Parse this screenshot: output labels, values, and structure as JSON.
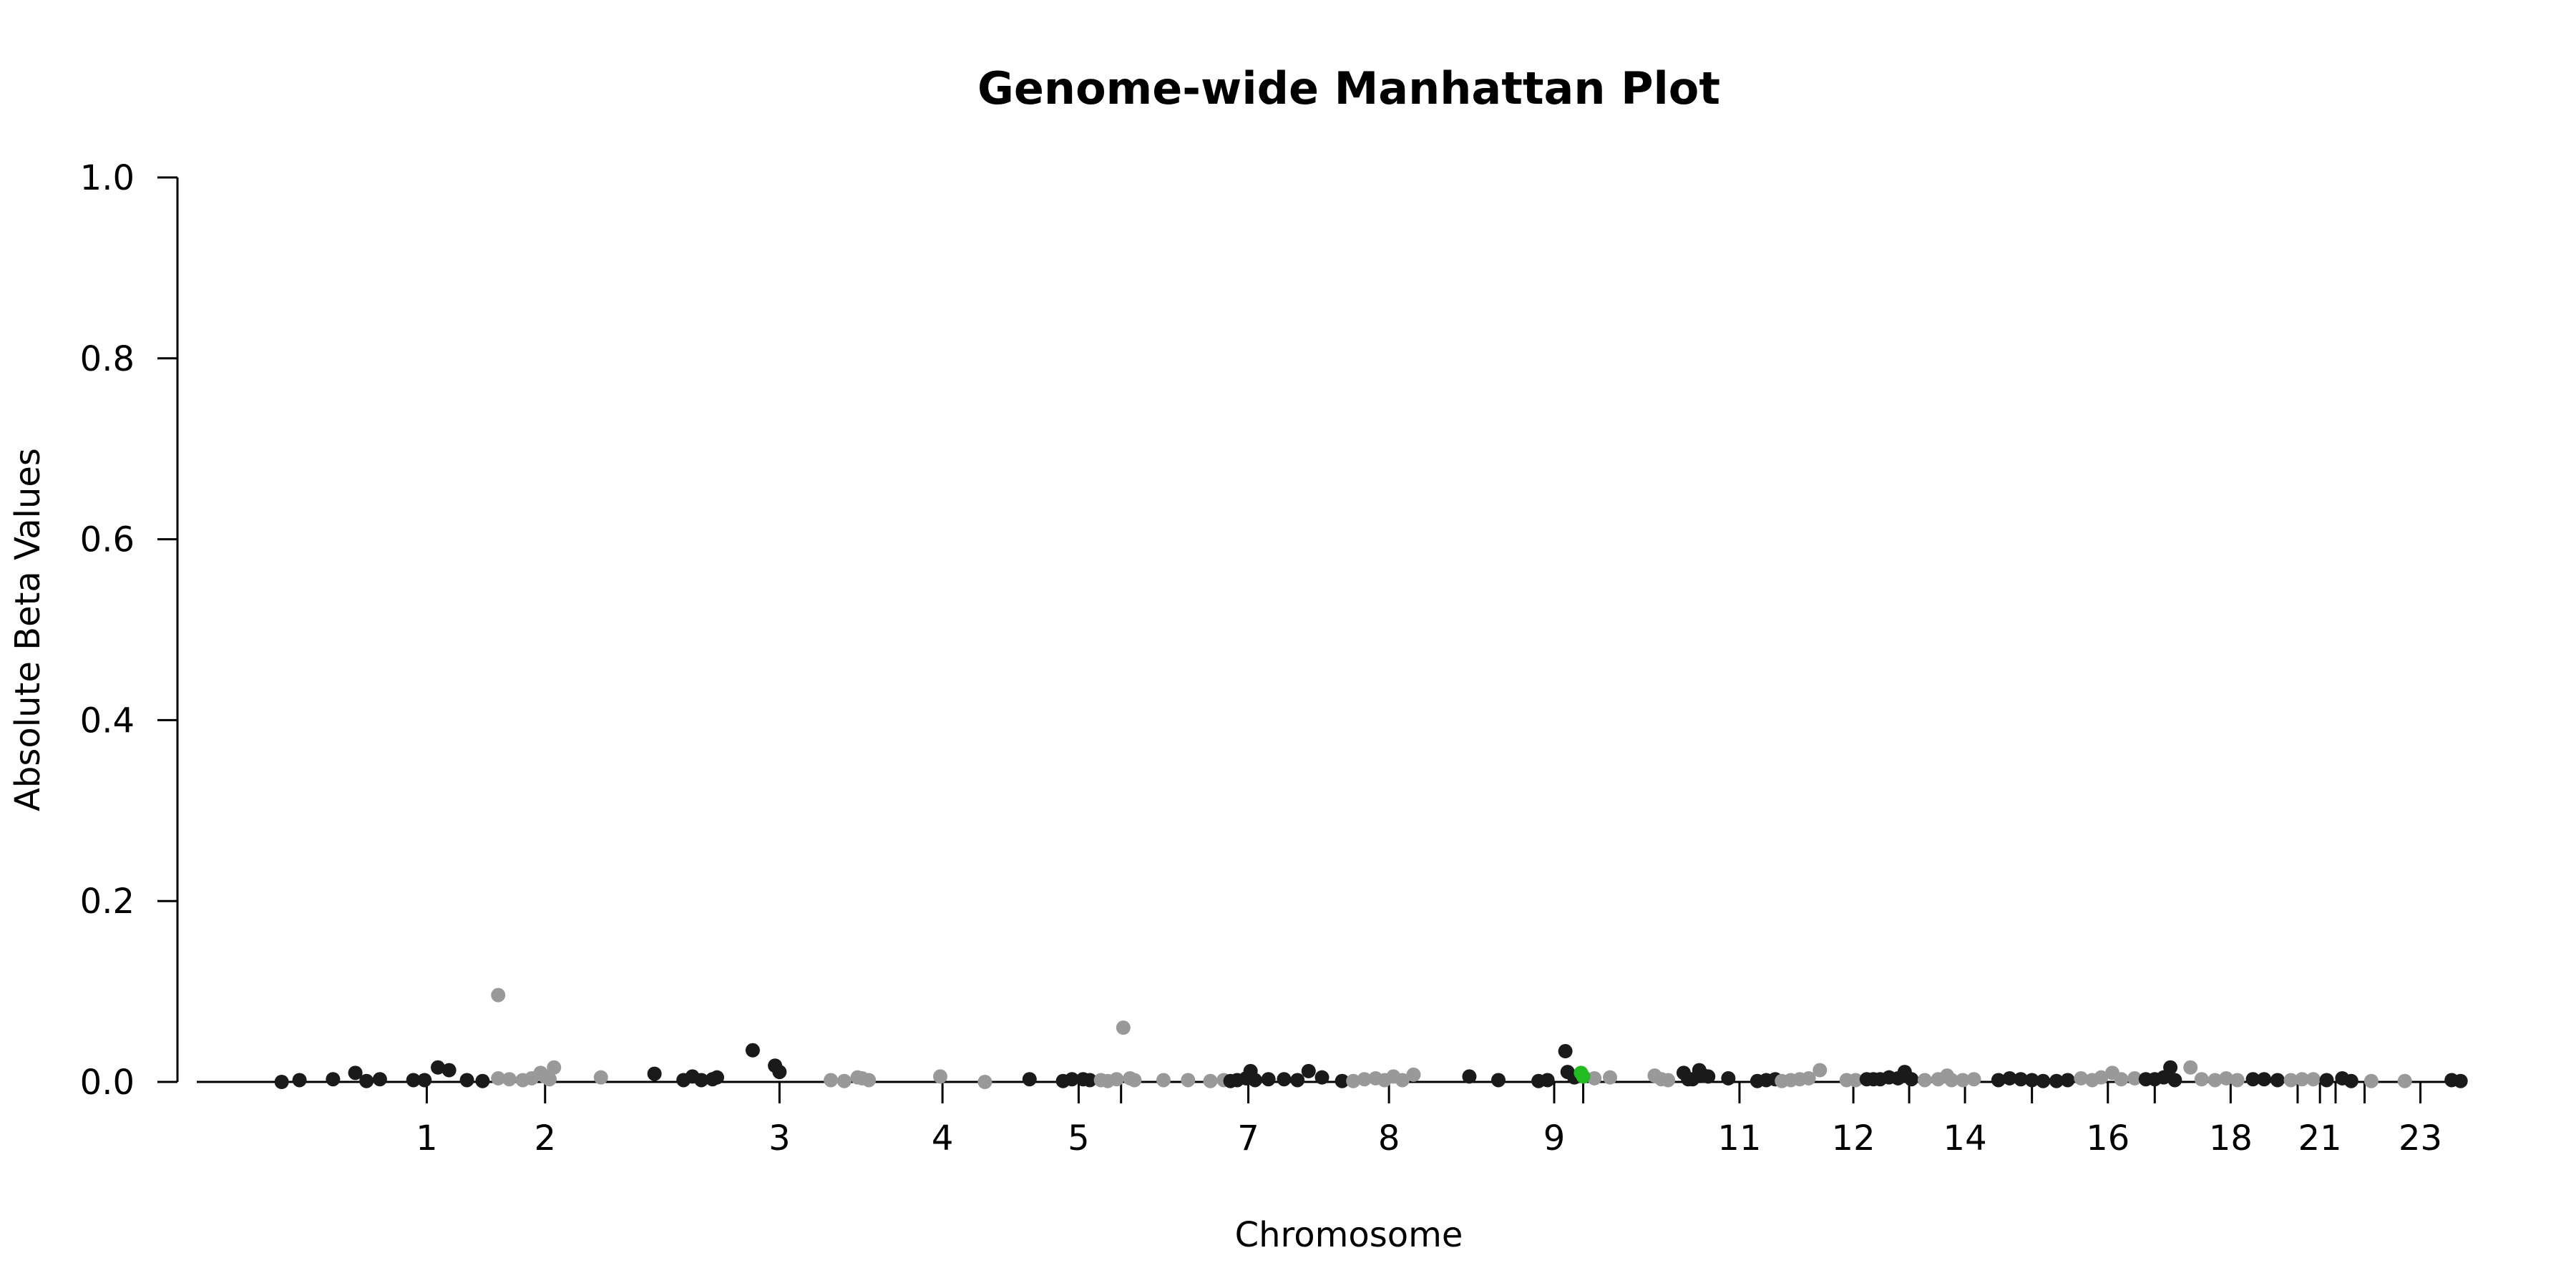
{
  "chart_data": {
    "type": "scatter",
    "title": "Genome-wide Manhattan Plot",
    "xlabel": "Chromosome",
    "ylabel": "Absolute Beta Values",
    "ylim": [
      0,
      1
    ],
    "yticks": [
      "0.0",
      "0.2",
      "0.4",
      "0.6",
      "0.8",
      "1.0"
    ],
    "grid": false,
    "legend": "none",
    "colors": {
      "odd": "#1a1a1a",
      "even": "#999999",
      "highlight": "#22bb22"
    },
    "chromosome_ticks": [
      {
        "label": "1",
        "pos": 0.095
      },
      {
        "label": "2",
        "pos": 0.148
      },
      {
        "label": "3",
        "pos": 0.253
      },
      {
        "label": "4",
        "pos": 0.326
      },
      {
        "label": "5",
        "pos": 0.387
      },
      {
        "label": "",
        "pos": 0.406
      },
      {
        "label": "7",
        "pos": 0.463
      },
      {
        "label": "8",
        "pos": 0.526
      },
      {
        "label": "9",
        "pos": 0.6
      },
      {
        "label": "",
        "pos": 0.613
      },
      {
        "label": "11",
        "pos": 0.683
      },
      {
        "label": "12",
        "pos": 0.734
      },
      {
        "label": "",
        "pos": 0.759
      },
      {
        "label": "14",
        "pos": 0.784
      },
      {
        "label": "",
        "pos": 0.814
      },
      {
        "label": "16",
        "pos": 0.848
      },
      {
        "label": "",
        "pos": 0.869
      },
      {
        "label": "18",
        "pos": 0.903
      },
      {
        "label": "",
        "pos": 0.933
      },
      {
        "label": "21",
        "pos": 0.943
      },
      {
        "label": "",
        "pos": 0.95
      },
      {
        "label": "",
        "pos": 0.963
      },
      {
        "label": "23",
        "pos": 0.988
      }
    ],
    "series": [
      {
        "chr": 1,
        "points": [
          [
            0.03,
            0.0
          ],
          [
            0.038,
            0.002
          ],
          [
            0.053,
            0.003
          ],
          [
            0.063,
            0.01
          ],
          [
            0.068,
            0.001
          ],
          [
            0.074,
            0.003
          ],
          [
            0.089,
            0.002
          ],
          [
            0.094,
            0.002
          ],
          [
            0.1,
            0.016
          ],
          [
            0.105,
            0.013
          ],
          [
            0.113,
            0.002
          ],
          [
            0.12,
            0.001
          ]
        ]
      },
      {
        "chr": 2,
        "points": [
          [
            0.127,
            0.096
          ],
          [
            0.127,
            0.004
          ],
          [
            0.132,
            0.003
          ],
          [
            0.138,
            0.002
          ],
          [
            0.142,
            0.004
          ],
          [
            0.146,
            0.01
          ],
          [
            0.148,
            0.006
          ],
          [
            0.152,
            0.016
          ],
          [
            0.15,
            0.003
          ],
          [
            0.173,
            0.005
          ]
        ]
      },
      {
        "chr": 3,
        "points": [
          [
            0.197,
            0.009
          ],
          [
            0.21,
            0.002
          ],
          [
            0.214,
            0.006
          ],
          [
            0.218,
            0.002
          ],
          [
            0.223,
            0.003
          ],
          [
            0.225,
            0.005
          ],
          [
            0.241,
            0.035
          ],
          [
            0.251,
            0.018
          ],
          [
            0.253,
            0.011
          ]
        ]
      },
      {
        "chr": 4,
        "points": [
          [
            0.276,
            0.002
          ],
          [
            0.282,
            0.001
          ],
          [
            0.288,
            0.005
          ],
          [
            0.29,
            0.004
          ],
          [
            0.293,
            0.002
          ],
          [
            0.325,
            0.006
          ],
          [
            0.345,
            0.0
          ]
        ]
      },
      {
        "chr": 5,
        "points": [
          [
            0.365,
            0.003
          ],
          [
            0.38,
            0.001
          ],
          [
            0.384,
            0.003
          ],
          [
            0.389,
            0.003
          ],
          [
            0.392,
            0.002
          ]
        ]
      },
      {
        "chr": 6,
        "points": [
          [
            0.397,
            0.002
          ],
          [
            0.4,
            0.001
          ],
          [
            0.404,
            0.003
          ],
          [
            0.407,
            0.06
          ],
          [
            0.41,
            0.004
          ],
          [
            0.412,
            0.002
          ],
          [
            0.425,
            0.002
          ],
          [
            0.436,
            0.002
          ],
          [
            0.446,
            0.001
          ],
          [
            0.452,
            0.002
          ]
        ]
      },
      {
        "chr": 7,
        "points": [
          [
            0.455,
            0.001
          ],
          [
            0.458,
            0.002
          ],
          [
            0.462,
            0.004
          ],
          [
            0.464,
            0.012
          ],
          [
            0.466,
            0.002
          ],
          [
            0.472,
            0.003
          ],
          [
            0.479,
            0.003
          ],
          [
            0.485,
            0.002
          ],
          [
            0.49,
            0.012
          ],
          [
            0.496,
            0.005
          ],
          [
            0.505,
            0.001
          ]
        ]
      },
      {
        "chr": 8,
        "points": [
          [
            0.51,
            0.001
          ],
          [
            0.515,
            0.003
          ],
          [
            0.52,
            0.004
          ],
          [
            0.524,
            0.002
          ],
          [
            0.528,
            0.006
          ],
          [
            0.532,
            0.002
          ],
          [
            0.537,
            0.008
          ]
        ]
      },
      {
        "chr": 9,
        "points": [
          [
            0.562,
            0.006
          ],
          [
            0.575,
            0.002
          ],
          [
            0.593,
            0.001
          ],
          [
            0.597,
            0.002
          ],
          [
            0.605,
            0.034
          ],
          [
            0.606,
            0.011
          ],
          [
            0.609,
            0.005
          ]
        ]
      },
      {
        "chr": 10,
        "points": [
          [
            0.618,
            0.004
          ],
          [
            0.625,
            0.005
          ],
          [
            0.645,
            0.007
          ],
          [
            0.648,
            0.003
          ],
          [
            0.651,
            0.002
          ]
        ]
      },
      {
        "chr": 11,
        "points": [
          [
            0.658,
            0.01
          ],
          [
            0.66,
            0.003
          ],
          [
            0.662,
            0.003
          ],
          [
            0.665,
            0.013
          ],
          [
            0.667,
            0.007
          ],
          [
            0.669,
            0.006
          ],
          [
            0.678,
            0.004
          ],
          [
            0.691,
            0.001
          ],
          [
            0.695,
            0.002
          ],
          [
            0.699,
            0.003
          ]
        ]
      },
      {
        "chr": 12,
        "points": [
          [
            0.702,
            0.001
          ],
          [
            0.706,
            0.002
          ],
          [
            0.71,
            0.003
          ],
          [
            0.714,
            0.004
          ],
          [
            0.719,
            0.013
          ],
          [
            0.731,
            0.002
          ],
          [
            0.735,
            0.002
          ]
        ]
      },
      {
        "chr": 13,
        "points": [
          [
            0.74,
            0.003
          ],
          [
            0.743,
            0.003
          ],
          [
            0.746,
            0.003
          ],
          [
            0.75,
            0.005
          ],
          [
            0.754,
            0.004
          ],
          [
            0.757,
            0.011
          ],
          [
            0.76,
            0.003
          ]
        ]
      },
      {
        "chr": 14,
        "points": [
          [
            0.766,
            0.002
          ],
          [
            0.772,
            0.003
          ],
          [
            0.776,
            0.007
          ],
          [
            0.778,
            0.002
          ],
          [
            0.783,
            0.002
          ],
          [
            0.788,
            0.003
          ]
        ]
      },
      {
        "chr": 15,
        "points": [
          [
            0.799,
            0.002
          ],
          [
            0.804,
            0.004
          ],
          [
            0.809,
            0.003
          ],
          [
            0.814,
            0.002
          ],
          [
            0.819,
            0.001
          ],
          [
            0.825,
            0.001
          ],
          [
            0.83,
            0.002
          ]
        ]
      },
      {
        "chr": 16,
        "points": [
          [
            0.836,
            0.004
          ],
          [
            0.841,
            0.002
          ],
          [
            0.845,
            0.005
          ],
          [
            0.85,
            0.01
          ],
          [
            0.854,
            0.003
          ],
          [
            0.86,
            0.004
          ]
        ]
      },
      {
        "chr": 17,
        "points": [
          [
            0.865,
            0.003
          ],
          [
            0.869,
            0.003
          ],
          [
            0.873,
            0.005
          ],
          [
            0.876,
            0.016
          ],
          [
            0.878,
            0.002
          ]
        ]
      },
      {
        "chr": 18,
        "points": [
          [
            0.885,
            0.016
          ],
          [
            0.89,
            0.003
          ],
          [
            0.896,
            0.002
          ],
          [
            0.901,
            0.004
          ],
          [
            0.906,
            0.002
          ]
        ]
      },
      {
        "chr": 19,
        "points": [
          [
            0.913,
            0.003
          ],
          [
            0.918,
            0.003
          ],
          [
            0.924,
            0.002
          ]
        ]
      },
      {
        "chr": 20,
        "points": [
          [
            0.93,
            0.002
          ],
          [
            0.935,
            0.003
          ],
          [
            0.94,
            0.003
          ]
        ]
      },
      {
        "chr": 21,
        "points": [
          [
            0.946,
            0.002
          ],
          [
            0.953,
            0.004
          ],
          [
            0.957,
            0.001
          ]
        ]
      },
      {
        "chr": 22,
        "points": [
          [
            0.966,
            0.001
          ],
          [
            0.981,
            0.001
          ]
        ]
      },
      {
        "chr": 23,
        "points": [
          [
            1.002,
            0.002
          ],
          [
            1.006,
            0.001
          ]
        ]
      }
    ],
    "highlight_points": [
      [
        0.612,
        0.01
      ],
      [
        0.613,
        0.006
      ]
    ]
  }
}
